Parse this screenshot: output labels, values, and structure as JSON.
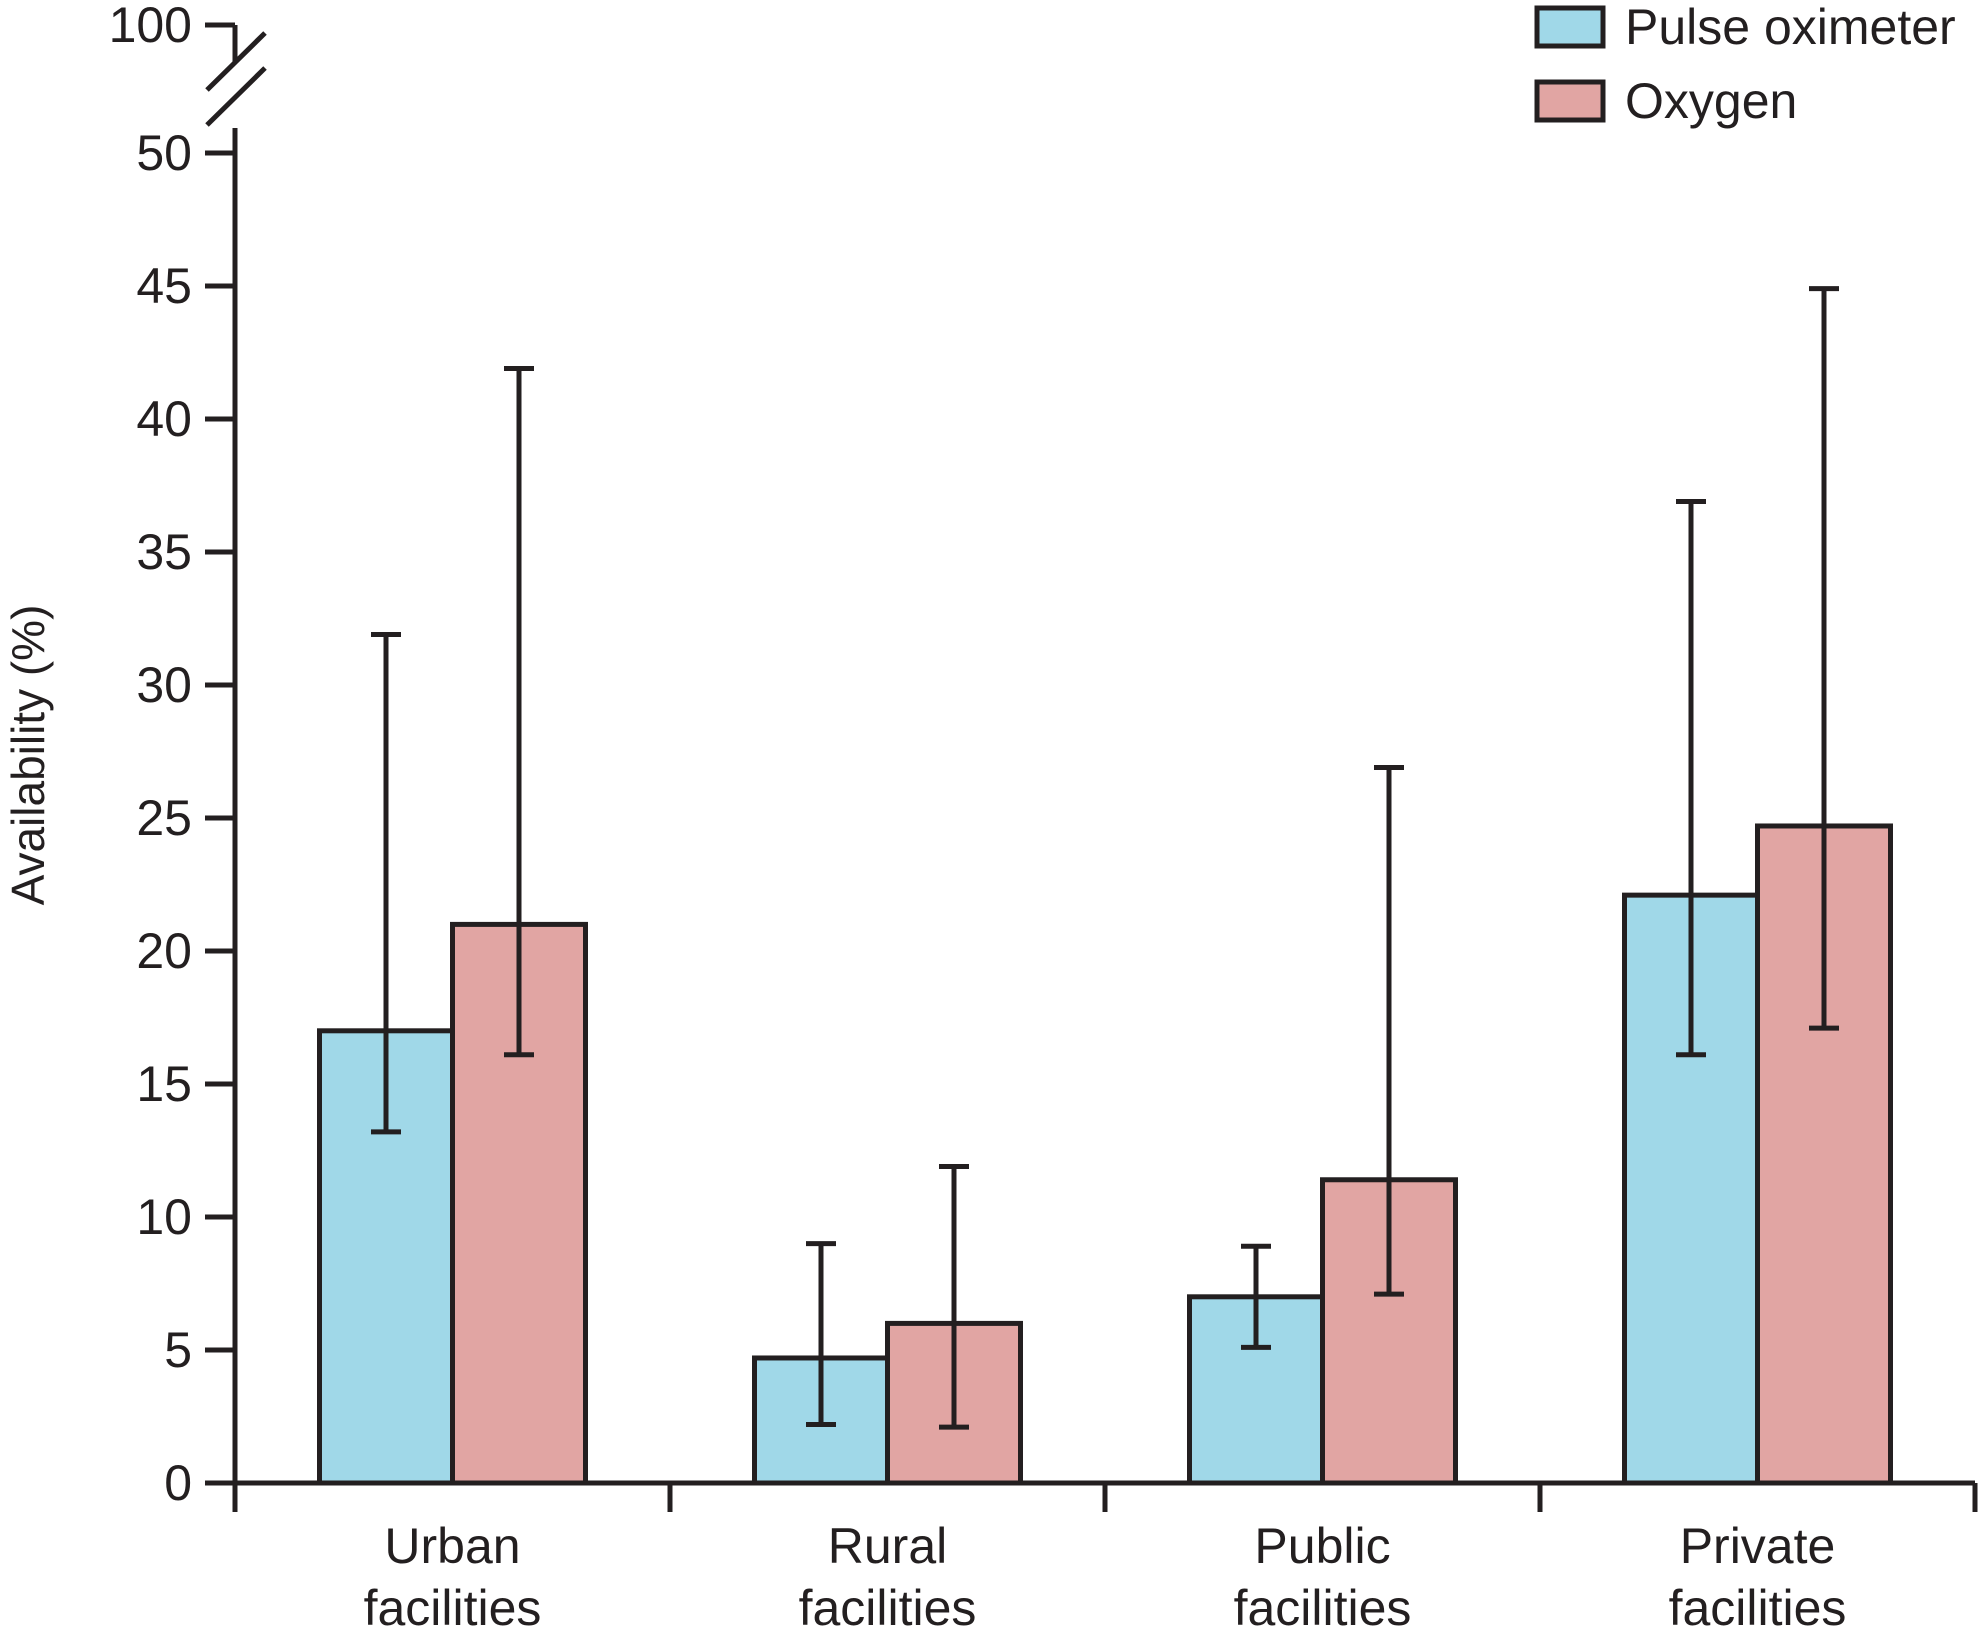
{
  "chart_data": {
    "type": "bar",
    "title": "",
    "xlabel": "",
    "ylabel": "Availability (%)",
    "ylim": [
      0,
      50
    ],
    "ybreak_top_tick": "100",
    "yticks": [
      0,
      5,
      10,
      15,
      20,
      25,
      30,
      35,
      40,
      45,
      50
    ],
    "grid": false,
    "legend_position": "top-right",
    "categories": [
      [
        "Urban",
        "facilities"
      ],
      [
        "Rural",
        "facilities"
      ],
      [
        "Public",
        "facilities"
      ],
      [
        "Private",
        "facilities"
      ]
    ],
    "series": [
      {
        "name": "Pulse oximeter",
        "color": "#a0d8e8",
        "values": [
          17,
          4.7,
          7,
          22.1
        ],
        "error_low": [
          13.2,
          2.2,
          5.1,
          16.1
        ],
        "error_high": [
          31.9,
          9,
          8.9,
          36.9
        ]
      },
      {
        "name": "Oxygen",
        "color": "#e1a5a3",
        "values": [
          21,
          6,
          11.4,
          24.7
        ],
        "error_low": [
          16.1,
          2.1,
          7.1,
          17.1
        ],
        "error_high": [
          41.9,
          11.9,
          26.9,
          44.9
        ]
      }
    ]
  }
}
